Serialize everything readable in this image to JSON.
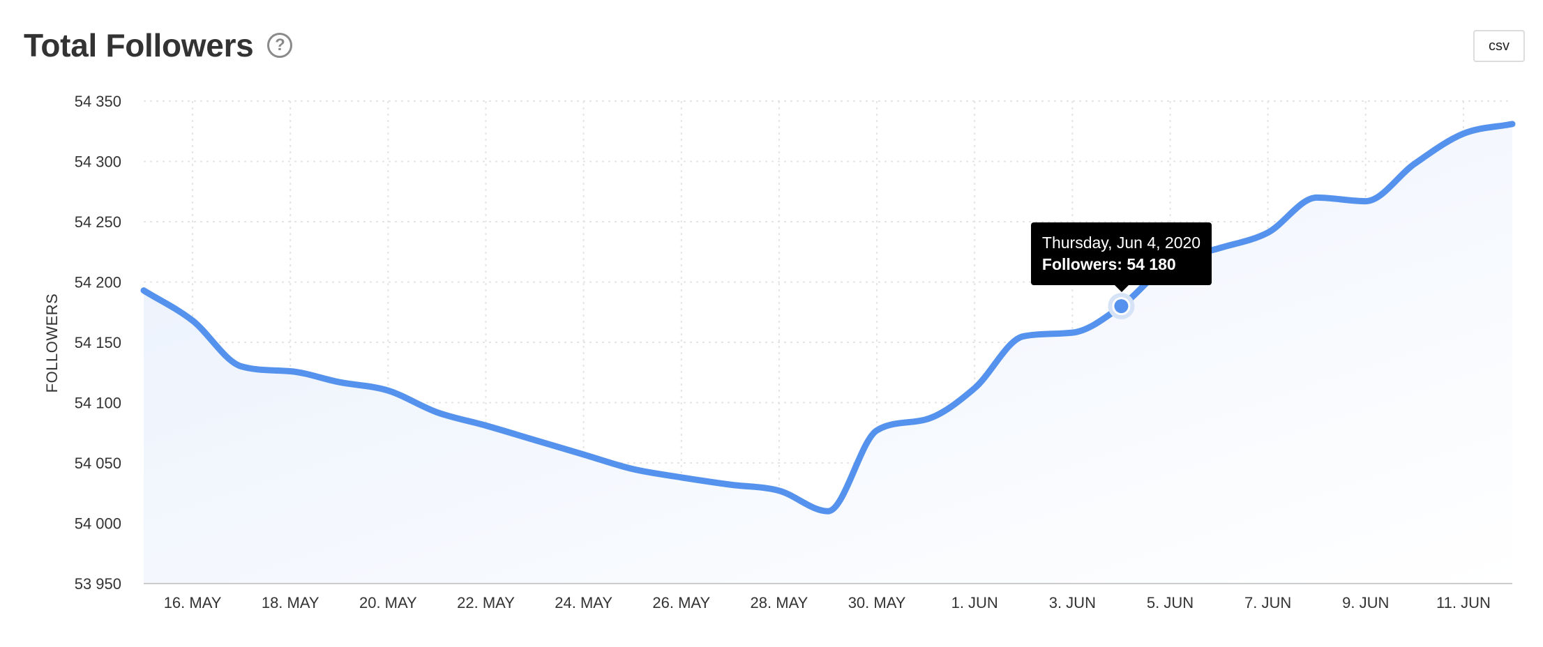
{
  "header": {
    "title": "Total Followers",
    "help_icon": "question-circle-icon",
    "csv_label": "csv"
  },
  "tooltip": {
    "date": "Thursday, Jun 4, 2020",
    "label": "Followers: 54 180"
  },
  "colors": {
    "line": "#5592ed",
    "area": "#eef4fd",
    "grid": "#e4e4e4",
    "tooltip_bg": "#000000"
  },
  "chart_data": {
    "type": "area",
    "title": "Total Followers",
    "ylabel": "FOLLOWERS",
    "xlabel": "",
    "ylim": [
      53950,
      54350
    ],
    "y_ticks": [
      53950,
      54000,
      54050,
      54100,
      54150,
      54200,
      54250,
      54300,
      54350
    ],
    "y_tick_labels": [
      "53 950",
      "54 000",
      "54 050",
      "54 100",
      "54 150",
      "54 200",
      "54 250",
      "54 300",
      "54 350"
    ],
    "x_range": [
      "2020-05-15",
      "2020-06-12"
    ],
    "x_ticks": [
      "2020-05-16",
      "2020-05-18",
      "2020-05-20",
      "2020-05-22",
      "2020-05-24",
      "2020-05-26",
      "2020-05-28",
      "2020-05-30",
      "2020-06-01",
      "2020-06-03",
      "2020-06-05",
      "2020-06-07",
      "2020-06-09",
      "2020-06-11"
    ],
    "x_tick_labels": [
      "16. MAY",
      "18. MAY",
      "20. MAY",
      "22. MAY",
      "24. MAY",
      "26. MAY",
      "28. MAY",
      "30. MAY",
      "1. JUN",
      "3. JUN",
      "5. JUN",
      "7. JUN",
      "9. JUN",
      "11. JUN"
    ],
    "grid": true,
    "series": [
      {
        "x": [
          "2020-05-15",
          "2020-05-16",
          "2020-05-17",
          "2020-05-18",
          "2020-05-19",
          "2020-05-20",
          "2020-05-21",
          "2020-05-22",
          "2020-05-23",
          "2020-05-24",
          "2020-05-25",
          "2020-05-26",
          "2020-05-27",
          "2020-05-28",
          "2020-05-29",
          "2020-05-30",
          "2020-05-31",
          "2020-06-01",
          "2020-06-02",
          "2020-06-03",
          "2020-06-04",
          "2020-06-05",
          "2020-06-06",
          "2020-06-07",
          "2020-06-08",
          "2020-06-09",
          "2020-06-10",
          "2020-06-11",
          "2020-06-12"
        ],
        "y": [
          54193,
          54168,
          54130,
          54126,
          54117,
          54110,
          54092,
          54081,
          54069,
          54057,
          54045,
          54038,
          54032,
          54027,
          54010,
          54077,
          54086,
          54112,
          54155,
          54158,
          54180,
          54216,
          54228,
          54241,
          54270,
          54267,
          54298,
          54323,
          54331
        ]
      }
    ],
    "highlight": {
      "x": "2020-06-04",
      "y": 54180
    }
  }
}
